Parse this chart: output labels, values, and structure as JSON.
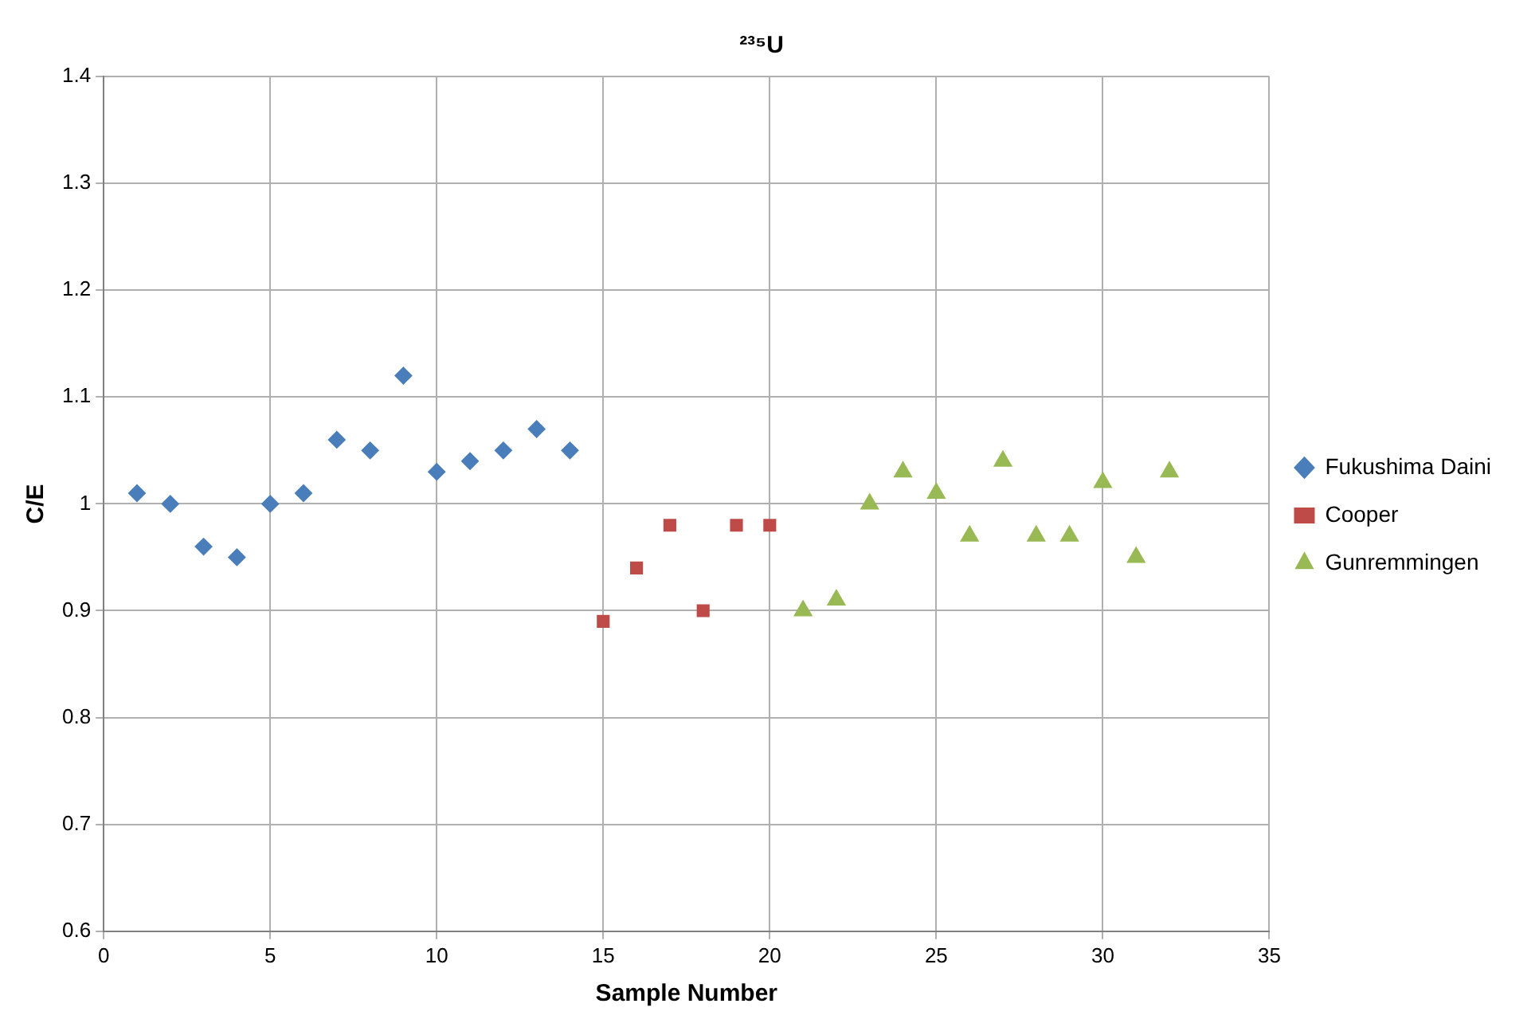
{
  "chart_data": {
    "type": "scatter",
    "title": "²³⁵U",
    "xlabel": "Sample Number",
    "ylabel": "C/E",
    "xlim": [
      0,
      35
    ],
    "xticks": [
      0,
      5,
      10,
      15,
      20,
      25,
      30,
      35
    ],
    "ylim": [
      0.6,
      1.4
    ],
    "yticks": [
      0.6,
      0.7,
      0.8,
      0.9,
      1,
      1.1,
      1.2,
      1.3,
      1.4
    ],
    "grid": true,
    "legend": "right",
    "series": [
      {
        "name": "Fukushima Daini",
        "color": "#4a7ebb",
        "marker": "diamond",
        "x": [
          1,
          2,
          3,
          4,
          5,
          6,
          7,
          8,
          9,
          10,
          11,
          12,
          13,
          14
        ],
        "values": [
          1.01,
          1.0,
          0.96,
          0.95,
          1.0,
          1.01,
          1.06,
          1.05,
          1.12,
          1.03,
          1.04,
          1.05,
          1.07,
          1.05
        ]
      },
      {
        "name": "Cooper",
        "color": "#be4b48",
        "marker": "square",
        "x": [
          15,
          16,
          17,
          18,
          19,
          20
        ],
        "values": [
          0.89,
          0.94,
          0.98,
          0.9,
          0.98,
          0.98
        ]
      },
      {
        "name": "Gunremmingen",
        "color": "#98b954",
        "marker": "triangle",
        "x": [
          21,
          22,
          23,
          24,
          25,
          26,
          27,
          28,
          29,
          30,
          31,
          32
        ],
        "values": [
          0.9,
          0.91,
          1.0,
          1.03,
          1.01,
          0.97,
          1.04,
          0.97,
          0.97,
          1.02,
          0.95,
          1.03
        ]
      }
    ]
  }
}
